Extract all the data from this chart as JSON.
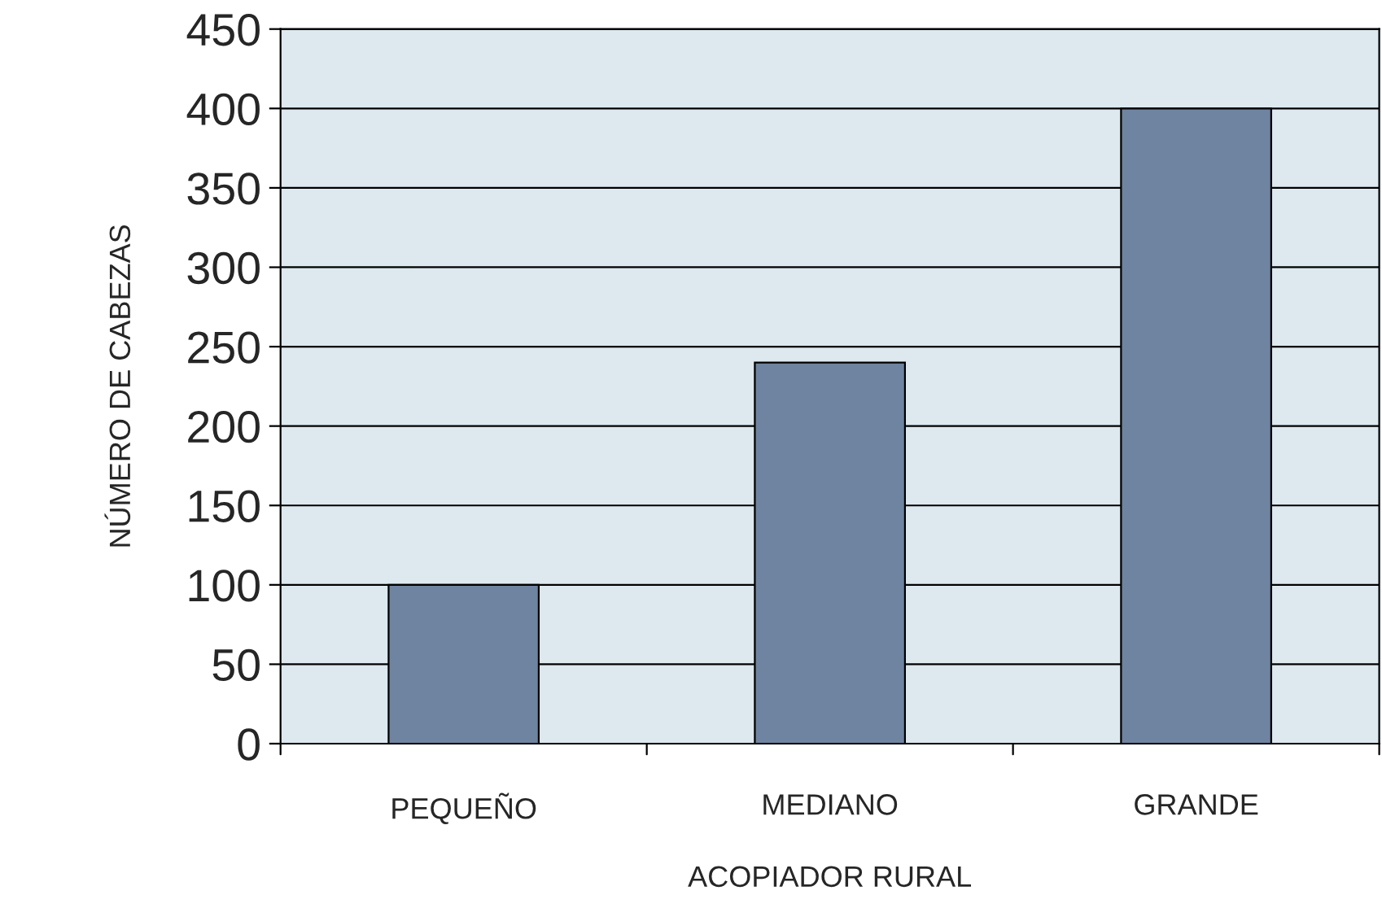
{
  "chart_data": {
    "type": "bar",
    "xlabel": "ACOPIADOR RURAL",
    "ylabel": "NÚMERO DE CABEZAS",
    "categories": [
      "PEQUEÑO",
      "MEDIANO",
      "GRANDE"
    ],
    "values": [
      100,
      240,
      400
    ],
    "color": "#6f84a0",
    "ylim": [
      0,
      450
    ],
    "yticks": [
      0,
      50,
      100,
      150,
      200,
      250,
      300,
      350,
      400,
      450
    ],
    "grid": "y"
  }
}
